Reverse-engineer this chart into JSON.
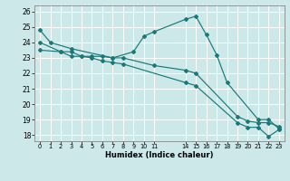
{
  "xlabel": "Humidex (Indice chaleur)",
  "background_color": "#cce8e8",
  "grid_color": "#ffffff",
  "line_color": "#1a7878",
  "xlim": [
    -0.5,
    23.5
  ],
  "ylim": [
    17.6,
    26.4
  ],
  "xtick_positions": [
    0,
    1,
    2,
    3,
    4,
    5,
    6,
    7,
    8,
    9,
    10,
    11,
    14,
    15,
    16,
    17,
    18,
    19,
    20,
    21,
    22,
    23
  ],
  "xtick_labels": [
    "0",
    "1",
    "2",
    "3",
    "4",
    "5",
    "6",
    "7",
    "8",
    "9",
    "10",
    "11",
    "14",
    "15",
    "16",
    "17",
    "18",
    "19",
    "20",
    "21",
    "22",
    "23"
  ],
  "ytick_positions": [
    18,
    19,
    20,
    21,
    22,
    23,
    24,
    25,
    26
  ],
  "ytick_labels": [
    "18",
    "19",
    "20",
    "21",
    "22",
    "23",
    "24",
    "25",
    "26"
  ],
  "line1_x": [
    0,
    1,
    3,
    7,
    9,
    10,
    11,
    14,
    15,
    16,
    17,
    18,
    21,
    22,
    23
  ],
  "line1_y": [
    24.8,
    24.0,
    23.6,
    23.0,
    23.4,
    24.4,
    24.7,
    25.5,
    25.7,
    24.5,
    23.2,
    21.4,
    19.0,
    19.0,
    18.4
  ],
  "line2_x": [
    0,
    2,
    3,
    4,
    5,
    6,
    7,
    8,
    11,
    14,
    15,
    19,
    20,
    21,
    22,
    23
  ],
  "line2_y": [
    24.0,
    23.4,
    23.4,
    23.1,
    23.1,
    23.1,
    23.0,
    23.0,
    22.5,
    22.2,
    22.0,
    19.2,
    18.9,
    18.8,
    18.8,
    18.55
  ],
  "line3_x": [
    0,
    2,
    3,
    4,
    5,
    6,
    7,
    8,
    14,
    15,
    19,
    20,
    21,
    22,
    23
  ],
  "line3_y": [
    23.5,
    23.4,
    23.1,
    23.1,
    23.0,
    22.8,
    22.7,
    22.6,
    21.4,
    21.2,
    18.8,
    18.5,
    18.5,
    17.9,
    18.35
  ]
}
